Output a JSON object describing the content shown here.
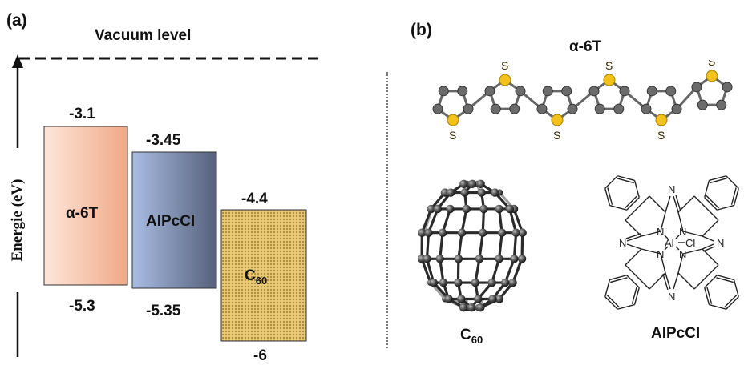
{
  "panel_a": {
    "label": "(a)",
    "vacuum_label": "Vacuum level",
    "y_axis_label": "Energie (eV)",
    "materials": [
      {
        "name": "α-6T",
        "lumo": "-3.1",
        "homo": "-5.3",
        "lumo_value": -3.1,
        "homo_value": -5.3,
        "color": "#f2b594"
      },
      {
        "name": "AlPcCl",
        "lumo": "-3.45",
        "homo": "-5.35",
        "lumo_value": -3.45,
        "homo_value": -5.35,
        "color": "#8fa8d2"
      },
      {
        "name": "C",
        "name_sub": "60",
        "lumo": "-4.4",
        "homo": "-6",
        "lumo_value": -4.4,
        "homo_value": -6.0,
        "color": "#e2c774"
      }
    ]
  },
  "panel_b": {
    "label": "(b)",
    "molecules": {
      "sexithiophene": {
        "title": "α-6T",
        "atom_label": "S"
      },
      "fullerene": {
        "label": "C",
        "label_sub": "60"
      },
      "phthalocyanine": {
        "label": "AlPcCl",
        "center_atom": "Al",
        "ligand": "Cl",
        "nitrogen": "N"
      }
    }
  }
}
